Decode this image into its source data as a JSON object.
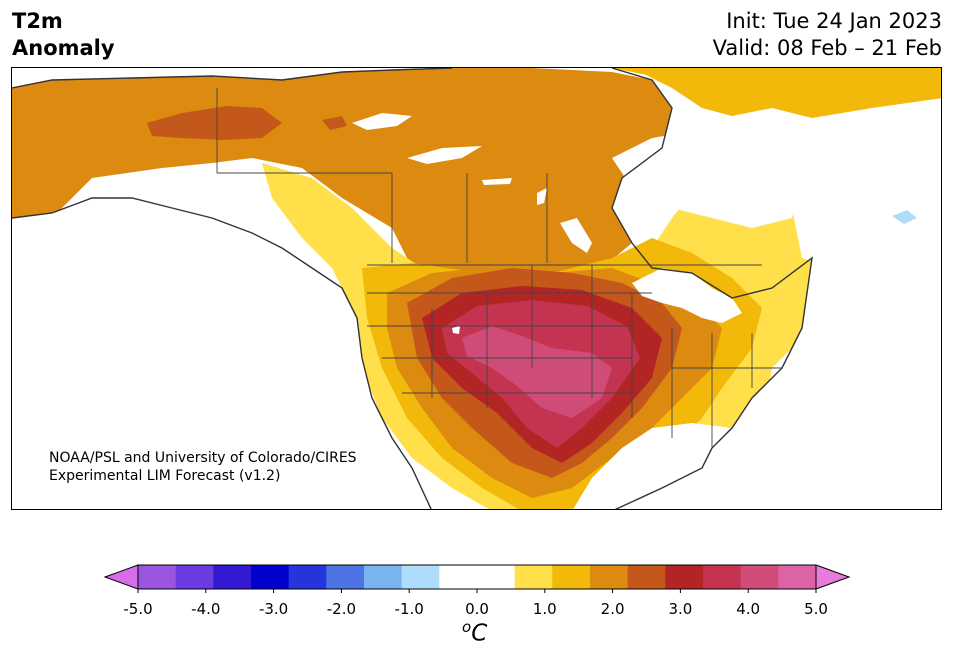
{
  "title": {
    "line1": "T2m",
    "line2": "Anomaly"
  },
  "init": "Init: Tue 24 Jan 2023",
  "valid": "Valid: 08 Feb – 21 Feb",
  "credit": {
    "line1": "NOAA/PSL and University of Colorado/CIRES",
    "line2": "Experimental LIM Forecast (v1.2)"
  },
  "colorbar": {
    "ticks": [
      "-5.0",
      "-4.0",
      "-3.0",
      "-2.0",
      "-1.0",
      "0.0",
      "1.0",
      "2.0",
      "3.0",
      "4.0",
      "5.0"
    ],
    "unit_base": "C",
    "unit_sup": "o",
    "colors": [
      "#d66ee8",
      "#9b55e0",
      "#6a3be0",
      "#3419d2",
      "#0000cf",
      "#2435dc",
      "#4e73e3",
      "#78b4f0",
      "#aedcfa",
      "#ffffff",
      "#ffffff",
      "#ffe04a",
      "#f2b90a",
      "#dd8a10",
      "#c4581a",
      "#b32424",
      "#c43450",
      "#d04c78",
      "#dc64a4",
      "#e87cdc"
    ],
    "under_color": "#d66ee8",
    "over_color": "#e87cdc"
  },
  "map": {
    "region": "North America",
    "ocean_color": "#ffffff",
    "anomaly_fill_colors": [
      "#ffe04a",
      "#f2b90a",
      "#dd8a10",
      "#c4581a",
      "#b32424",
      "#c43450",
      "#d04c78"
    ]
  }
}
